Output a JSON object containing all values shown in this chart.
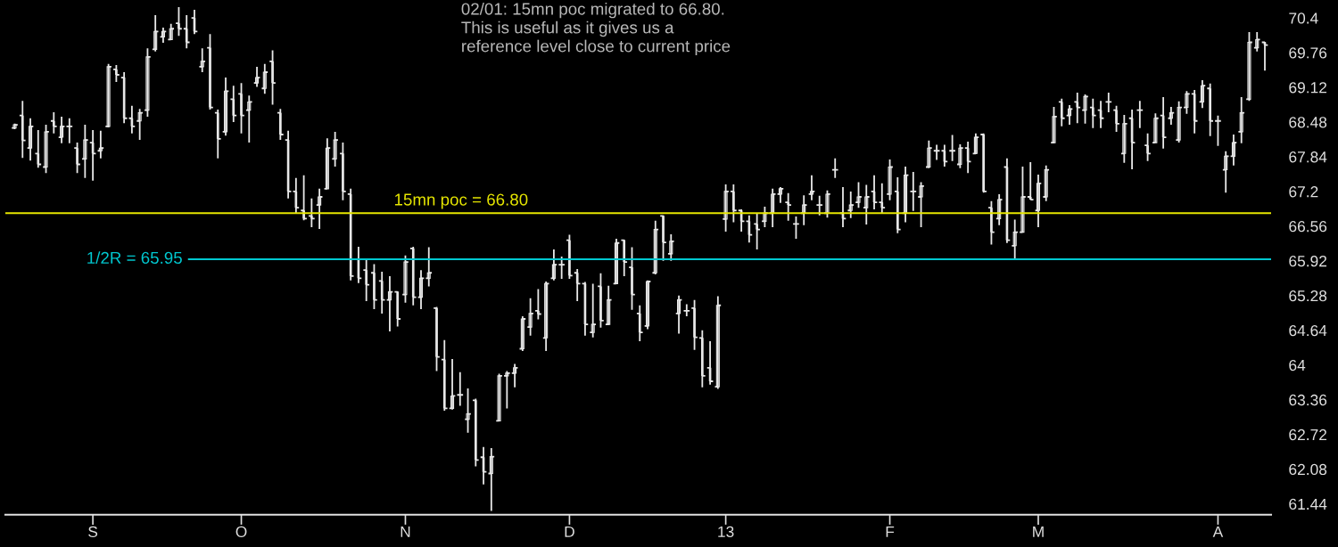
{
  "chart_data": {
    "type": "candlestick",
    "categories": [
      null,
      null,
      null,
      null,
      null,
      null,
      null,
      null,
      null,
      null,
      "S",
      null,
      null,
      null,
      null,
      null,
      null,
      null,
      null,
      null,
      null,
      null,
      null,
      null,
      null,
      null,
      null,
      null,
      null,
      "O",
      null,
      null,
      null,
      null,
      null,
      null,
      null,
      null,
      null,
      null,
      null,
      null,
      null,
      null,
      null,
      null,
      null,
      null,
      null,
      null,
      "N",
      null,
      null,
      null,
      null,
      null,
      null,
      null,
      null,
      null,
      null,
      null,
      null,
      null,
      null,
      null,
      null,
      null,
      null,
      null,
      null,
      "D",
      null,
      null,
      null,
      null,
      null,
      null,
      null,
      null,
      null,
      null,
      null,
      null,
      null,
      null,
      null,
      null,
      null,
      null,
      null,
      "13",
      null,
      null,
      null,
      null,
      null,
      null,
      null,
      null,
      null,
      null,
      null,
      null,
      null,
      null,
      null,
      null,
      null,
      null,
      null,
      null,
      "F",
      null,
      null,
      null,
      null,
      null,
      null,
      null,
      null,
      null,
      null,
      null,
      null,
      null,
      null,
      null,
      null,
      null,
      null,
      "M",
      null,
      null,
      null,
      null,
      null,
      null,
      null,
      null,
      null,
      null,
      null,
      null,
      null,
      null,
      null,
      null,
      null,
      null,
      null,
      null,
      null,
      null,
      "A",
      null,
      null,
      null,
      null,
      null,
      null
    ],
    "ohlc": [
      [
        68.37,
        68.45,
        68.35,
        68.43
      ],
      [
        68.6,
        68.87,
        67.82,
        68.14
      ],
      [
        68.0,
        68.55,
        67.77,
        68.4
      ],
      [
        67.9,
        68.33,
        67.64,
        67.7
      ],
      [
        67.65,
        68.43,
        67.54,
        68.3
      ],
      [
        68.5,
        68.66,
        68.27,
        68.4
      ],
      [
        68.2,
        68.58,
        68.09,
        68.4
      ],
      [
        68.4,
        68.55,
        68.09,
        68.4
      ],
      [
        68.0,
        68.1,
        67.54,
        67.7
      ],
      [
        67.8,
        68.43,
        67.45,
        68.15
      ],
      [
        68.1,
        68.33,
        67.4,
        67.9
      ],
      [
        67.95,
        68.32,
        67.81,
        68.0
      ],
      [
        68.4,
        69.55,
        68.38,
        69.5
      ],
      [
        69.45,
        69.53,
        69.22,
        69.35
      ],
      [
        69.3,
        69.4,
        68.46,
        68.55
      ],
      [
        68.55,
        68.78,
        68.27,
        68.4
      ],
      [
        68.5,
        68.72,
        68.15,
        68.65
      ],
      [
        68.7,
        69.84,
        68.58,
        69.68
      ],
      [
        69.82,
        70.45,
        69.78,
        70.15
      ],
      [
        70.05,
        70.22,
        69.94,
        70.15
      ],
      [
        70.0,
        70.29,
        70.0,
        70.2
      ],
      [
        70.3,
        70.6,
        70.07,
        70.2
      ],
      [
        70.2,
        70.45,
        69.84,
        69.95
      ],
      [
        70.4,
        70.55,
        70.1,
        70.15
      ],
      [
        69.5,
        69.84,
        69.4,
        69.6
      ],
      [
        69.85,
        70.1,
        68.71,
        68.75
      ],
      [
        68.65,
        68.71,
        67.81,
        68.17
      ],
      [
        68.3,
        69.3,
        68.23,
        69.05
      ],
      [
        68.9,
        69.15,
        68.48,
        68.6
      ],
      [
        69.0,
        69.2,
        68.27,
        68.6
      ],
      [
        68.7,
        68.97,
        68.1,
        68.85
      ],
      [
        69.2,
        69.5,
        69.13,
        69.3
      ],
      [
        69.1,
        69.55,
        69.0,
        69.4
      ],
      [
        69.6,
        69.8,
        68.8,
        69.2
      ],
      [
        68.65,
        68.72,
        68.15,
        68.25
      ],
      [
        68.15,
        68.32,
        67.07,
        67.2
      ],
      [
        67.2,
        67.45,
        66.79,
        66.9
      ],
      [
        66.85,
        67.5,
        66.67,
        66.7
      ],
      [
        66.75,
        67.07,
        66.54,
        66.7
      ],
      [
        66.95,
        67.25,
        66.51,
        67.1
      ],
      [
        67.25,
        68.18,
        67.25,
        68.0
      ],
      [
        67.8,
        68.3,
        67.66,
        68.15
      ],
      [
        67.9,
        68.1,
        67.04,
        67.2
      ],
      [
        67.15,
        67.25,
        65.56,
        65.64
      ],
      [
        65.95,
        66.18,
        65.51,
        65.6
      ],
      [
        65.75,
        65.94,
        65.18,
        65.48
      ],
      [
        65.7,
        65.86,
        65.03,
        65.2
      ],
      [
        65.55,
        65.72,
        64.95,
        65.2
      ],
      [
        65.2,
        65.64,
        64.62,
        65.35
      ],
      [
        65.35,
        65.36,
        64.71,
        64.85
      ],
      [
        65.3,
        66.02,
        65.15,
        65.9
      ],
      [
        66.15,
        66.18,
        65.1,
        65.25
      ],
      [
        65.25,
        65.75,
        65.03,
        65.6
      ],
      [
        65.6,
        66.17,
        65.45,
        65.7
      ],
      [
        65.05,
        65.07,
        63.89,
        64.15
      ],
      [
        64.1,
        64.46,
        63.16,
        63.2
      ],
      [
        63.2,
        64.11,
        63.18,
        63.43
      ],
      [
        63.45,
        63.87,
        63.25,
        63.45
      ],
      [
        63.0,
        63.57,
        62.75,
        63.1
      ],
      [
        63.35,
        63.38,
        62.13,
        62.25
      ],
      [
        62.3,
        62.49,
        61.8,
        62.03
      ],
      [
        62.0,
        62.47,
        61.31,
        62.31
      ],
      [
        62.97,
        63.84,
        62.97,
        63.8
      ],
      [
        63.8,
        63.89,
        63.2,
        63.85
      ],
      [
        63.85,
        64.02,
        63.59,
        63.95
      ],
      [
        64.3,
        64.9,
        64.26,
        64.85
      ],
      [
        64.7,
        65.23,
        64.54,
        64.95
      ],
      [
        65.0,
        65.4,
        64.84,
        64.94
      ],
      [
        64.5,
        65.54,
        64.26,
        65.5
      ],
      [
        65.6,
        66.13,
        65.56,
        65.85
      ],
      [
        65.85,
        66.0,
        65.59,
        65.85
      ],
      [
        66.3,
        66.4,
        65.59,
        65.65
      ],
      [
        65.7,
        65.77,
        65.18,
        65.5
      ],
      [
        65.5,
        65.53,
        64.54,
        64.75
      ],
      [
        64.6,
        65.5,
        64.51,
        64.75
      ],
      [
        65.45,
        65.69,
        64.69,
        64.82
      ],
      [
        64.75,
        65.46,
        64.74,
        65.2
      ],
      [
        65.5,
        66.33,
        65.5,
        66.25
      ],
      [
        66.3,
        66.31,
        65.64,
        65.9
      ],
      [
        65.8,
        66.17,
        65.02,
        65.3
      ],
      [
        64.95,
        65.1,
        64.44,
        64.6
      ],
      [
        64.72,
        65.56,
        64.66,
        65.54
      ],
      [
        65.7,
        66.66,
        65.67,
        66.5
      ],
      [
        66.75,
        66.76,
        65.92,
        66.26
      ],
      [
        66.05,
        66.41,
        65.92,
        66.28
      ],
      [
        64.95,
        65.28,
        64.58,
        65.2
      ],
      [
        65.0,
        65.12,
        64.9,
        65.0
      ],
      [
        65.05,
        65.2,
        64.28,
        64.51
      ],
      [
        64.5,
        64.64,
        63.59,
        63.8
      ],
      [
        63.95,
        64.44,
        63.64,
        63.7
      ],
      [
        63.6,
        65.27,
        63.56,
        65.1
      ],
      [
        66.69,
        67.33,
        66.46,
        67.2
      ],
      [
        67.2,
        67.33,
        66.63,
        66.85
      ],
      [
        66.85,
        66.87,
        66.46,
        66.65
      ],
      [
        66.65,
        66.76,
        66.26,
        66.4
      ],
      [
        66.6,
        66.79,
        66.13,
        66.5
      ],
      [
        66.65,
        66.92,
        66.54,
        66.8
      ],
      [
        66.8,
        67.25,
        66.54,
        67.15
      ],
      [
        67.15,
        67.28,
        66.99,
        67.25
      ],
      [
        67.0,
        67.17,
        66.66,
        66.95
      ],
      [
        66.6,
        66.74,
        66.33,
        66.6
      ],
      [
        66.8,
        67.13,
        66.58,
        66.95
      ],
      [
        67.15,
        67.5,
        67.04,
        67.2
      ],
      [
        66.95,
        67.12,
        66.76,
        66.95
      ],
      [
        66.8,
        67.22,
        66.72,
        67.15
      ],
      [
        67.6,
        67.81,
        67.45,
        67.6
      ],
      [
        66.8,
        67.28,
        66.54,
        66.7
      ],
      [
        66.85,
        67.2,
        66.71,
        66.95
      ],
      [
        67.0,
        67.37,
        66.9,
        67.1
      ],
      [
        66.9,
        67.32,
        66.59,
        67.1
      ],
      [
        67.2,
        67.5,
        66.87,
        67.0
      ],
      [
        67.0,
        67.35,
        66.79,
        66.9
      ],
      [
        67.15,
        67.79,
        67.04,
        67.65
      ],
      [
        67.2,
        67.46,
        66.43,
        66.5
      ],
      [
        66.8,
        67.66,
        66.63,
        67.5
      ],
      [
        67.2,
        67.56,
        66.84,
        67.2
      ],
      [
        67.1,
        67.37,
        66.54,
        67.3
      ],
      [
        67.65,
        68.14,
        67.63,
        68.0
      ],
      [
        67.95,
        68.06,
        67.78,
        67.95
      ],
      [
        67.95,
        68.06,
        67.66,
        67.75
      ],
      [
        67.95,
        68.24,
        67.76,
        67.95
      ],
      [
        67.7,
        68.07,
        67.63,
        68.0
      ],
      [
        68.0,
        68.12,
        67.54,
        67.75
      ],
      [
        67.9,
        68.27,
        67.89,
        68.2
      ],
      [
        68.25,
        68.27,
        67.18,
        67.2
      ],
      [
        66.9,
        67.02,
        66.22,
        66.45
      ],
      [
        66.7,
        67.15,
        66.58,
        67.05
      ],
      [
        67.65,
        67.81,
        66.25,
        66.3
      ],
      [
        66.2,
        66.68,
        65.94,
        66.45
      ],
      [
        66.45,
        67.66,
        66.45,
        67.1
      ],
      [
        67.1,
        67.74,
        67.05,
        67.05
      ],
      [
        66.85,
        67.51,
        66.54,
        67.35
      ],
      [
        67.1,
        67.68,
        67.02,
        67.6
      ],
      [
        68.1,
        68.76,
        68.09,
        68.58
      ],
      [
        68.85,
        68.91,
        68.4,
        68.55
      ],
      [
        68.6,
        68.79,
        68.43,
        68.72
      ],
      [
        68.85,
        69.02,
        68.46,
        68.75
      ],
      [
        68.7,
        68.99,
        68.45,
        68.95
      ],
      [
        68.75,
        68.91,
        68.37,
        68.6
      ],
      [
        68.7,
        68.87,
        68.37,
        68.55
      ],
      [
        68.85,
        69.02,
        68.66,
        68.85
      ],
      [
        68.7,
        68.78,
        68.3,
        68.45
      ],
      [
        67.9,
        68.61,
        67.73,
        68.45
      ],
      [
        68.55,
        68.71,
        67.61,
        68.1
      ],
      [
        68.7,
        68.87,
        68.37,
        68.7
      ],
      [
        68.05,
        68.27,
        67.76,
        67.9
      ],
      [
        68.1,
        68.64,
        68.1,
        68.55
      ],
      [
        68.6,
        68.94,
        67.99,
        68.2
      ],
      [
        68.55,
        68.76,
        68.43,
        68.65
      ],
      [
        68.15,
        68.86,
        68.1,
        68.75
      ],
      [
        68.75,
        69.05,
        68.63,
        69.0
      ],
      [
        69.0,
        69.07,
        68.27,
        68.5
      ],
      [
        68.85,
        69.25,
        68.74,
        69.15
      ],
      [
        69.1,
        69.19,
        68.22,
        68.5
      ],
      [
        68.5,
        68.6,
        68.04,
        68.5
      ],
      [
        67.6,
        67.94,
        67.18,
        67.85
      ],
      [
        67.85,
        68.25,
        67.68,
        68.1
      ],
      [
        68.3,
        68.94,
        68.09,
        68.65
      ],
      [
        68.9,
        70.14,
        68.87,
        69.95
      ],
      [
        69.85,
        70.14,
        69.78,
        70.0
      ],
      [
        69.95,
        69.96,
        69.43,
        69.9
      ]
    ],
    "color": "#e8e8e8",
    "ylim": [
      61.24,
      70.73
    ],
    "yticks": [
      70.4,
      69.76,
      69.12,
      68.48,
      67.84,
      67.2,
      66.56,
      65.92,
      65.28,
      64.64,
      64,
      63.36,
      62.72,
      62.08,
      61.44
    ],
    "ref_lines": [
      {
        "axis": "y",
        "value": 66.8,
        "label": "15mn poc = 66.80",
        "color": "#e6e600"
      },
      {
        "axis": "y",
        "value": 65.95,
        "label": "1/2R = 65.95",
        "color": "#00c8d0"
      }
    ],
    "annotations": [
      "02/01: 15mn poc migrated to 66.80.\nThis is useful as it gives us a\nreference level close to current price"
    ],
    "grid": false
  }
}
